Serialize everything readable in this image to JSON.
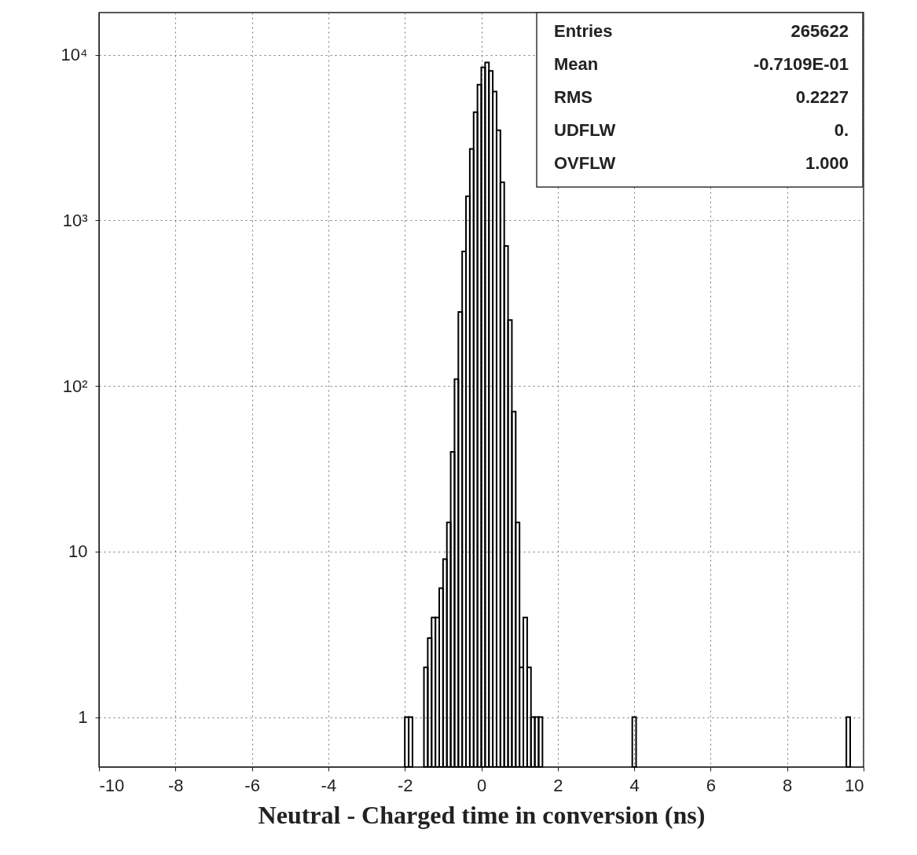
{
  "chart_data": {
    "type": "histogram",
    "xlabel": "Neutral - Charged time in conversion (ns)",
    "bins": [
      -2.0,
      -1.9,
      -1.8,
      -1.5,
      -1.4,
      -1.3,
      -1.2,
      -1.1,
      -1.0,
      -0.9,
      -0.8,
      -0.7,
      -0.6,
      -0.5,
      -0.4,
      -0.3,
      -0.2,
      -0.1,
      0,
      0.1,
      0.2,
      0.3,
      0.4,
      0.5,
      0.6,
      0.7,
      0.8,
      0.9,
      1.0,
      1.1,
      1.2,
      1.3,
      1.4,
      1.5,
      1.6,
      3.95,
      4.05,
      9.55,
      9.65
    ],
    "values": [
      1,
      1,
      null,
      2,
      3,
      4,
      4,
      6,
      9,
      15,
      40,
      110,
      280,
      650,
      1400,
      2700,
      4500,
      6600,
      8400,
      9000,
      8000,
      6000,
      3500,
      1700,
      700,
      250,
      70,
      15,
      2,
      4,
      2,
      1,
      1,
      1,
      null,
      1,
      null,
      1
    ],
    "color": "#000000",
    "log": "y",
    "xlim": [
      -10,
      10
    ],
    "ylim": [
      0.5,
      18000
    ],
    "xticks": [
      -10,
      -8,
      -6,
      -4,
      -2,
      0,
      2,
      4,
      6,
      8,
      10
    ],
    "yticks": [
      1,
      10,
      {
        "value": 100,
        "label": "10²"
      },
      {
        "value": 1000,
        "label": "10³"
      },
      {
        "value": 10000,
        "label": "10⁴"
      }
    ],
    "grid": true,
    "annotations": [
      "Entries",
      "265622",
      "Mean",
      "-0.7109E-01",
      "RMS",
      "0.2227",
      "UDFLW",
      "0.",
      "OVFLW",
      "1.000"
    ]
  }
}
